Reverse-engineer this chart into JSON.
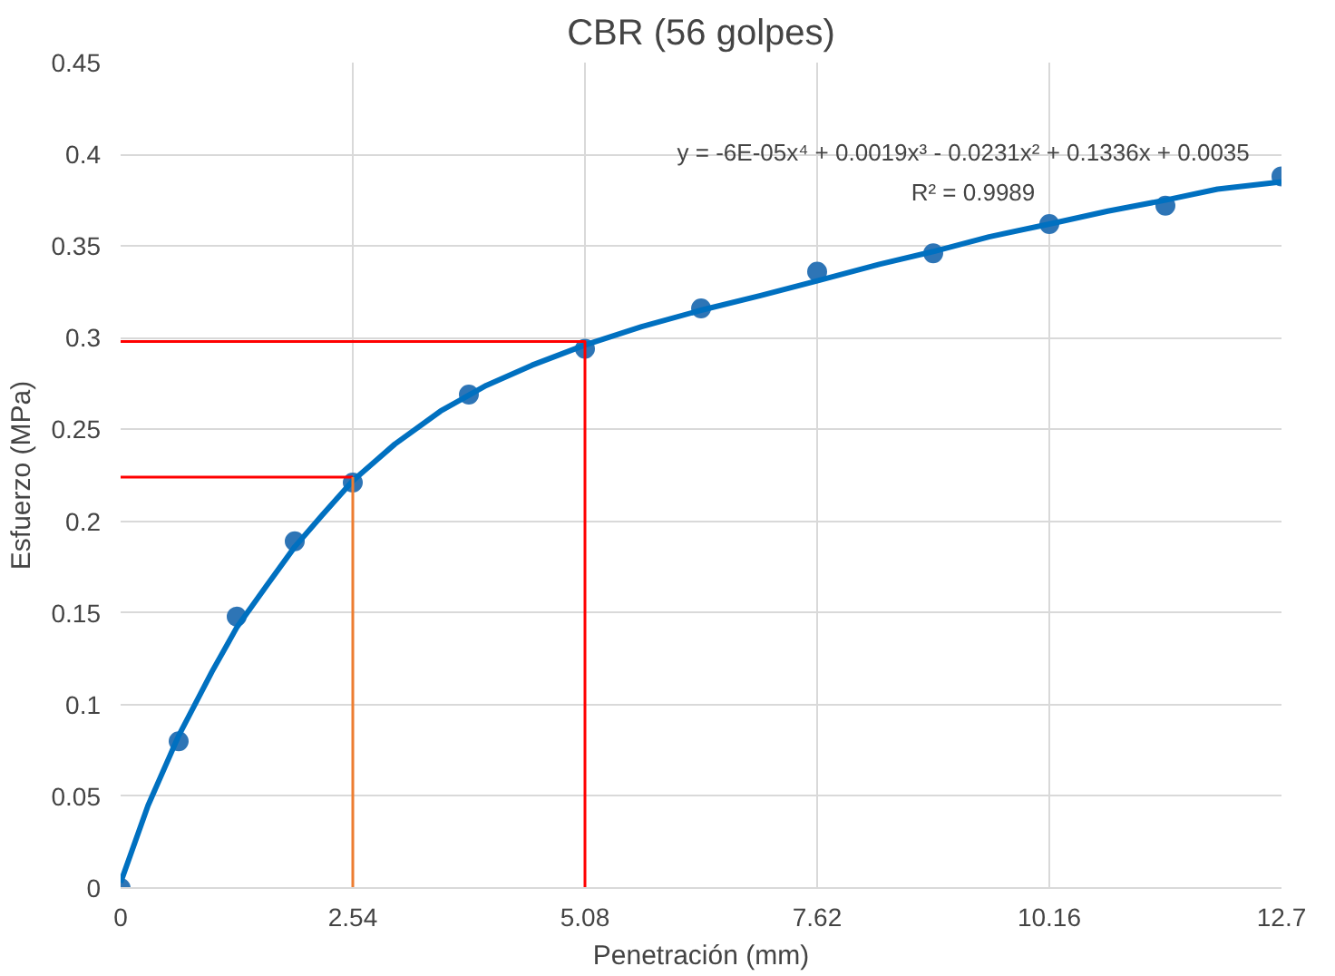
{
  "chart_data": {
    "type": "scatter",
    "title": "CBR (56 golpes)",
    "xlabel": "Penetración (mm)",
    "ylabel": "Esfuerzo (MPa)",
    "xlim": [
      0,
      12.7
    ],
    "ylim": [
      0,
      0.45
    ],
    "xticks": [
      0,
      2.54,
      5.08,
      7.62,
      10.16,
      12.7
    ],
    "yticks": [
      {
        "value": 0,
        "label": "0"
      },
      0.05,
      0.1,
      0.15,
      0.2,
      0.25,
      0.3,
      0.35,
      0.4,
      0.45
    ],
    "grid": true,
    "marker": "circle",
    "annotations": [
      "y = -6E-05x⁴ + 0.0019x³  - 0.0231x²  + 0.1336x  + 0.0035",
      "R² = 0.9989"
    ],
    "series": [
      {
        "color": "#2e75b6",
        "x": [
          0,
          0.635,
          1.27,
          1.905,
          2.54,
          3.81,
          5.08,
          6.35,
          7.62,
          8.89,
          10.16,
          11.43,
          12.7
        ],
        "values": [
          0.0,
          0.08,
          0.148,
          0.189,
          0.221,
          0.269,
          0.294,
          0.316,
          0.336,
          0.346,
          0.362,
          0.372,
          0.388
        ]
      },
      {
        "type": "line",
        "color": "#0070c0",
        "marker": "none",
        "x": [
          0,
          0.3,
          0.635,
          1,
          1.27,
          1.6,
          1.905,
          2.2,
          2.54,
          3,
          3.5,
          4,
          4.5,
          5.08,
          5.7,
          6.35,
          7,
          7.62,
          8.3,
          8.89,
          9.5,
          10.16,
          10.8,
          11.43,
          12,
          12.7
        ],
        "values": [
          0.003,
          0.045,
          0.083,
          0.118,
          0.142,
          0.165,
          0.186,
          0.203,
          0.222,
          0.242,
          0.26,
          0.274,
          0.285,
          0.296,
          0.306,
          0.315,
          0.323,
          0.331,
          0.34,
          0.347,
          0.355,
          0.362,
          0.369,
          0.375,
          0.381,
          0.385
        ]
      },
      {
        "type": "line",
        "color": "#ff0000",
        "marker": "none",
        "x": [
          0,
          5.08,
          5.08
        ],
        "values": [
          0.298,
          0.298,
          0
        ]
      },
      {
        "type": "line",
        "color": "#ff0000",
        "marker": "none",
        "x": [
          0,
          2.54
        ],
        "values": [
          0.224,
          0.224
        ]
      },
      {
        "type": "line",
        "color": "#ed7d31",
        "marker": "none",
        "x": [
          2.54,
          2.54
        ],
        "values": [
          0.224,
          0
        ]
      }
    ]
  }
}
